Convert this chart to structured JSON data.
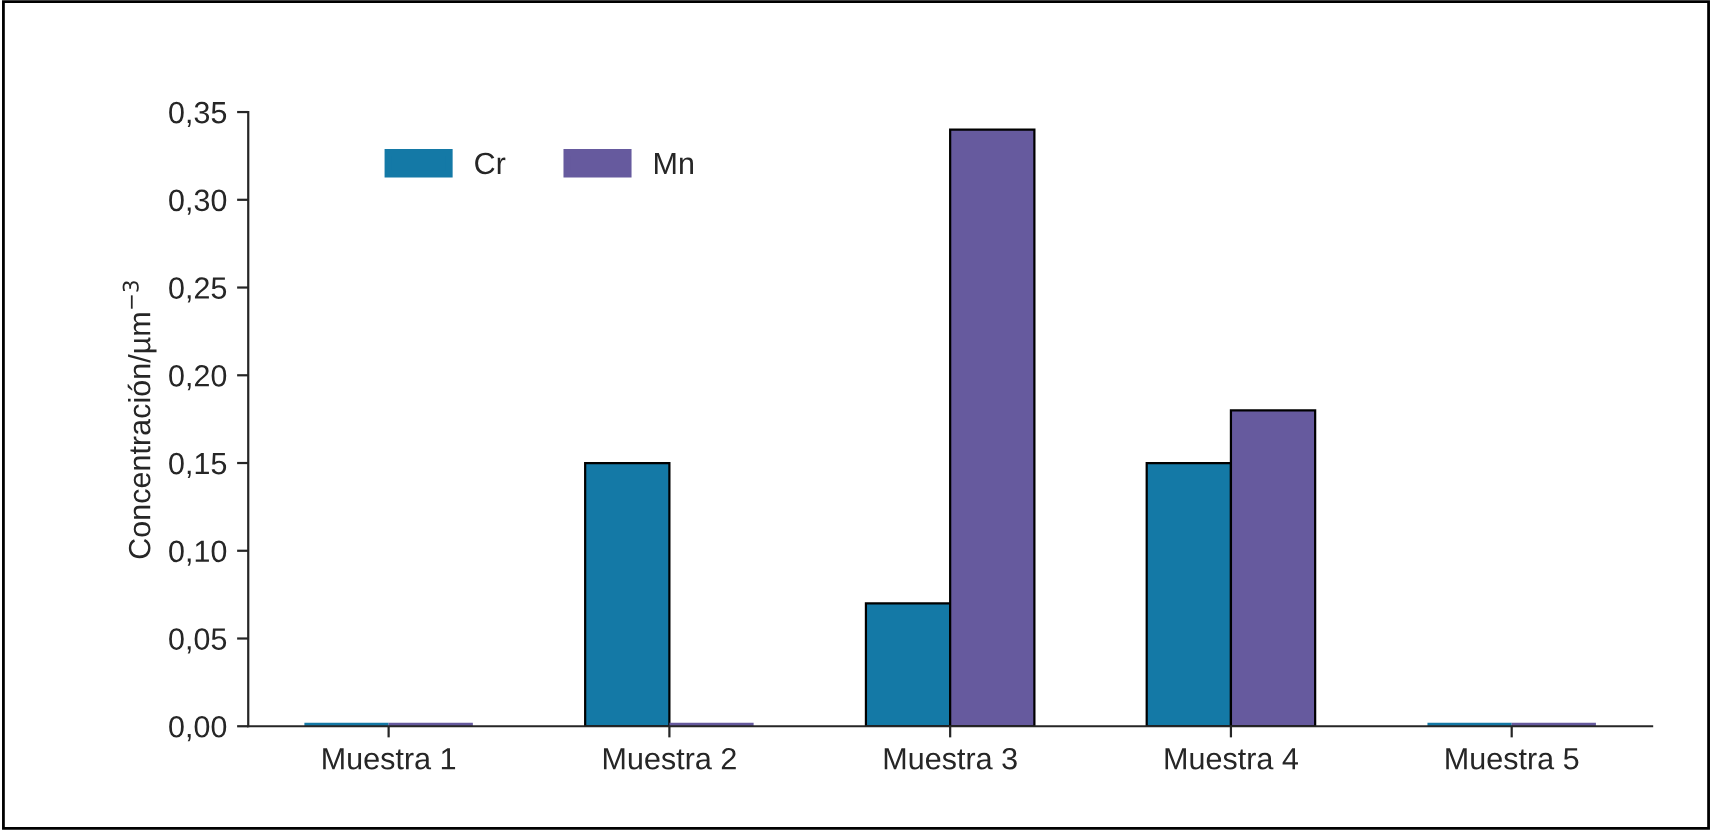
{
  "chart_data": {
    "type": "bar",
    "ylabel": "Concentración/µm$^{−3}$",
    "categories": [
      "Muestra 1",
      "Muestra 2",
      "Muestra 3",
      "Muestra 4",
      "Muestra 5"
    ],
    "series": [
      {
        "name": "Cr",
        "color": "#1479a6",
        "values": [
          0,
          0.15,
          0.07,
          0.15,
          0
        ]
      },
      {
        "name": "Mn",
        "color": "#665a9e",
        "values": [
          0,
          0,
          0.34,
          0.18,
          0
        ]
      }
    ],
    "ylim": [
      0,
      0.35
    ],
    "yticks": [
      {
        "value": 0,
        "label": "0,00"
      },
      {
        "value": 0.05,
        "label": "0,05"
      },
      {
        "value": 0.1,
        "label": "0,10"
      },
      {
        "value": 0.15,
        "label": "0,15"
      },
      {
        "value": 0.2,
        "label": "0,20"
      },
      {
        "value": 0.25,
        "label": "0,25"
      },
      {
        "value": 0.3,
        "label": "0,30"
      },
      {
        "value": 0.35,
        "label": "0,35"
      }
    ],
    "grid": false,
    "legend": "top left"
  }
}
